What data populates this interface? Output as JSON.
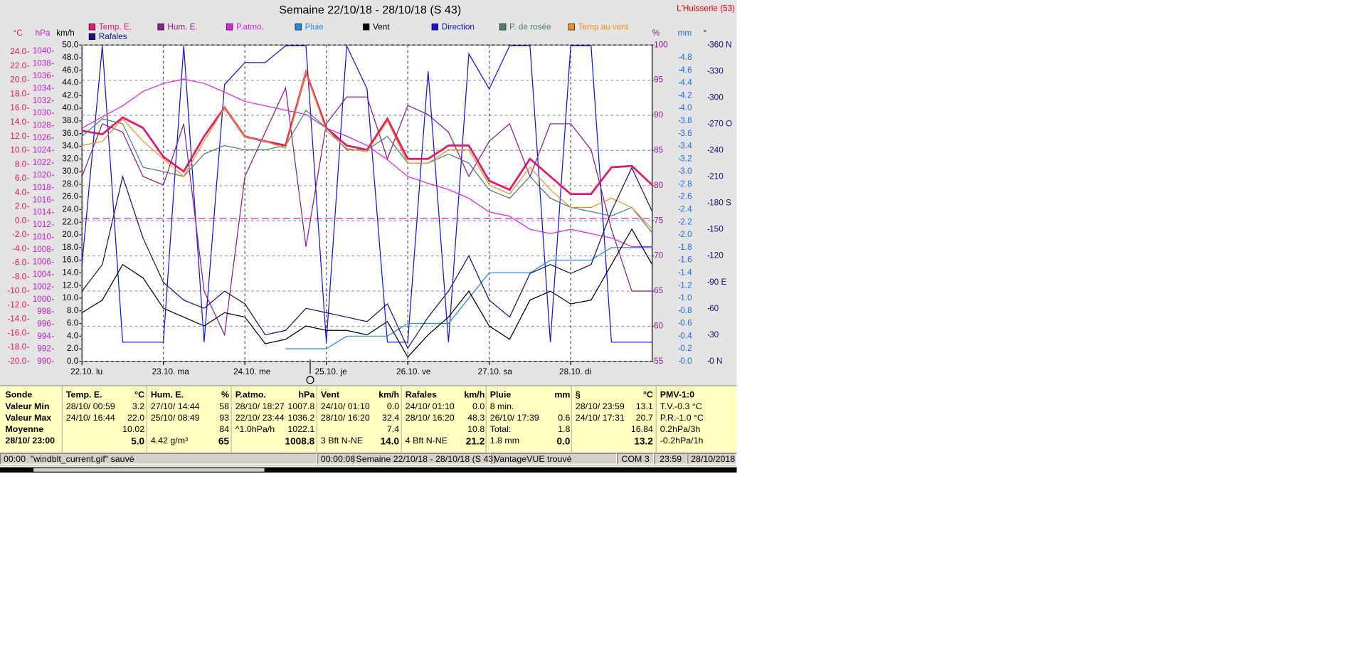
{
  "station": "L'Huisserie (53)",
  "chart_data": {
    "type": "line",
    "title": "Semaine 22/10/18 - 28/10/18 (S 43)",
    "grid": true,
    "x": [
      0,
      6,
      12,
      18,
      24,
      30,
      36,
      42,
      48,
      54,
      60,
      66,
      72,
      78,
      84,
      90,
      96,
      102,
      108,
      114,
      120,
      126,
      132,
      138,
      144,
      150,
      156,
      162,
      168
    ],
    "xlim": [
      0,
      168
    ],
    "xticks": [
      {
        "value": 0,
        "label": "22.10. lu"
      },
      {
        "value": 24,
        "label": "23.10. ma"
      },
      {
        "value": 48,
        "label": "24.10. me"
      },
      {
        "value": 72,
        "label": "25.10. je"
      },
      {
        "value": 96,
        "label": "26.10. ve"
      },
      {
        "value": 120,
        "label": "27.10. sa"
      },
      {
        "value": 144,
        "label": "28.10. di"
      }
    ],
    "axes": [
      {
        "unit": "°C",
        "color": "#e6176a",
        "side": "left",
        "lim": [
          -20,
          25
        ],
        "ticks": [
          {
            "value": -20,
            "label": "-20.0"
          },
          {
            "value": -18,
            "label": "-18.0"
          },
          {
            "value": -16,
            "label": "-16.0"
          },
          {
            "value": -14,
            "label": "-14.0"
          },
          {
            "value": -12,
            "label": "-12.0"
          },
          {
            "value": -10,
            "label": "-10.0"
          },
          {
            "value": -8,
            "label": "-8.0"
          },
          {
            "value": -6,
            "label": "-6.0"
          },
          {
            "value": -4,
            "label": "-4.0"
          },
          {
            "value": -2,
            "label": "-2.0"
          },
          {
            "value": 0,
            "label": "0.0"
          },
          {
            "value": 2,
            "label": "2.0"
          },
          {
            "value": 4,
            "label": "4.0"
          },
          {
            "value": 6,
            "label": "6.0"
          },
          {
            "value": 8,
            "label": "8.0"
          },
          {
            "value": 10,
            "label": "10.0"
          },
          {
            "value": 12,
            "label": "12.0"
          },
          {
            "value": 14,
            "label": "14.0"
          },
          {
            "value": 16,
            "label": "16.0"
          },
          {
            "value": 18,
            "label": "18.0"
          },
          {
            "value": 20,
            "label": "20.0"
          },
          {
            "value": 22,
            "label": "22.0"
          },
          {
            "value": 24,
            "label": "24.0"
          }
        ]
      },
      {
        "unit": "hPa",
        "color": "#c81ec8",
        "side": "left",
        "lim": [
          990,
          1041
        ],
        "ticks": [
          990,
          992,
          994,
          996,
          998,
          1000,
          1002,
          1004,
          1006,
          1008,
          1010,
          1012,
          1014,
          1016,
          1018,
          1020,
          1022,
          1024,
          1026,
          1028,
          1030,
          1032,
          1034,
          1036,
          1038,
          1040
        ]
      },
      {
        "unit": "km/h",
        "color": "#000000",
        "side": "left",
        "lim": [
          0,
          50
        ],
        "ticks": [
          {
            "value": 0,
            "label": "0.0"
          },
          {
            "value": 2,
            "label": "2.0"
          },
          {
            "value": 4,
            "label": "4.0"
          },
          {
            "value": 6,
            "label": "6.0"
          },
          {
            "value": 8,
            "label": "8.0"
          },
          {
            "value": 10,
            "label": "10.0"
          },
          {
            "value": 12,
            "label": "12.0"
          },
          {
            "value": 14,
            "label": "14.0"
          },
          {
            "value": 16,
            "label": "16.0"
          },
          {
            "value": 18,
            "label": "18.0"
          },
          {
            "value": 20,
            "label": "20.0"
          },
          {
            "value": 22,
            "label": "22.0"
          },
          {
            "value": 24,
            "label": "24.0"
          },
          {
            "value": 26,
            "label": "26.0"
          },
          {
            "value": 28,
            "label": "28.0"
          },
          {
            "value": 30,
            "label": "30.0"
          },
          {
            "value": 32,
            "label": "32.0"
          },
          {
            "value": 34,
            "label": "34.0"
          },
          {
            "value": 36,
            "label": "36.0"
          },
          {
            "value": 38,
            "label": "38.0"
          },
          {
            "value": 40,
            "label": "40.0"
          },
          {
            "value": 42,
            "label": "42.0"
          },
          {
            "value": 44,
            "label": "44.0"
          },
          {
            "value": 46,
            "label": "46.0"
          },
          {
            "value": 48,
            "label": "48.0"
          },
          {
            "value": 50,
            "label": "50.0"
          }
        ]
      },
      {
        "unit": "%",
        "color": "#8b1c8b",
        "side": "right",
        "lim": [
          55,
          100
        ],
        "ticks": [
          55,
          60,
          65,
          70,
          75,
          80,
          85,
          90,
          95,
          100
        ]
      },
      {
        "unit": "mm",
        "color": "#1e6ee6",
        "side": "right",
        "lim": [
          0,
          5
        ],
        "ticks": [
          {
            "value": 0,
            "label": "0.0"
          },
          0.2,
          0.4,
          0.6,
          0.8,
          {
            "value": 1,
            "label": "1.0"
          },
          1.2,
          1.4,
          1.6,
          1.8,
          {
            "value": 2,
            "label": "2.0"
          },
          2.2,
          2.4,
          2.6,
          2.8,
          {
            "value": 3,
            "label": "3.0"
          },
          3.2,
          3.4,
          3.6,
          3.8,
          {
            "value": 4,
            "label": "4.0"
          },
          4.2,
          4.4,
          4.6,
          4.8
        ]
      },
      {
        "unit": "°",
        "color": "#14147a",
        "side": "right",
        "lim": [
          0,
          360
        ],
        "ticks": [
          {
            "value": 0,
            "label": "0  N"
          },
          30,
          60,
          {
            "value": 90,
            "label": "90  E"
          },
          120,
          150,
          {
            "value": 180,
            "label": "180  S"
          },
          210,
          240,
          {
            "value": 270,
            "label": "270  O"
          },
          300,
          330,
          {
            "value": 360,
            "label": "360  N"
          }
        ]
      }
    ],
    "reference_hpa": 1013,
    "series": [
      {
        "name": "Temp. E.",
        "color": "#e6176a",
        "axis": 0,
        "values": [
          12.8,
          12.3,
          14.7,
          13.2,
          9.1,
          7.0,
          12.0,
          16.1,
          12.0,
          11.3,
          10.7,
          21.1,
          13.2,
          10.7,
          10.1,
          14.5,
          8.8,
          8.8,
          10.7,
          10.7,
          5.7,
          4.4,
          8.8,
          6.3,
          3.8,
          3.8,
          7.6,
          7.8,
          5.1
        ]
      },
      {
        "name": "Hum. E.",
        "color": "#8b1c8b",
        "axis": 3,
        "values": [
          81.3,
          88.8,
          87.6,
          81.3,
          80.1,
          88.8,
          65.0,
          58.8,
          81.3,
          87.6,
          93.9,
          71.3,
          88.8,
          92.6,
          92.6,
          83.8,
          91.4,
          90.1,
          87.6,
          81.3,
          86.3,
          88.8,
          81.3,
          88.8,
          88.8,
          85.1,
          73.8,
          65.0,
          65.0
        ]
      },
      {
        "name": "P.atmo.",
        "color": "#e61ee6",
        "axis": 1,
        "values": [
          1027.6,
          1029.4,
          1031.2,
          1033.5,
          1034.8,
          1035.5,
          1034.8,
          1033.4,
          1031.9,
          1031.2,
          1030.5,
          1029.8,
          1027.6,
          1026.3,
          1024.8,
          1022.5,
          1019.8,
          1018.7,
          1017.7,
          1016.3,
          1014.1,
          1013.4,
          1011.3,
          1010.6,
          1011.3,
          1010.6,
          1009.9,
          1008.5,
          1008.5
        ]
      },
      {
        "name": "Pluie",
        "color": "#1e8ce6",
        "axis": 4,
        "values": [
          null,
          null,
          null,
          null,
          null,
          null,
          null,
          null,
          null,
          null,
          0.2,
          0.2,
          0.2,
          0.4,
          0.4,
          0.4,
          0.6,
          0.6,
          0.6,
          1.0,
          1.4,
          1.4,
          1.4,
          1.6,
          1.6,
          1.6,
          1.8,
          1.8,
          1.8
        ]
      },
      {
        "name": "Vent",
        "color": "#000000",
        "axis": 2,
        "values": [
          7.7,
          9.7,
          15.3,
          13.2,
          8.4,
          7.0,
          5.6,
          7.7,
          7.0,
          2.8,
          3.5,
          5.6,
          4.9,
          4.9,
          4.2,
          6.3,
          0.7,
          4.2,
          7.0,
          11.1,
          5.6,
          3.5,
          9.7,
          11.1,
          9.1,
          9.7,
          15.3,
          20.9,
          15.3
        ]
      },
      {
        "name": "Direction",
        "color": "#1414e6",
        "axis": 5,
        "values": [
          110,
          359,
          22,
          22,
          22,
          359,
          22,
          315,
          340,
          340,
          359,
          359,
          22,
          359,
          310,
          22,
          22,
          330,
          22,
          350,
          310,
          359,
          359,
          22,
          359,
          359,
          22,
          22,
          22
        ]
      },
      {
        "name": "P. de rosée",
        "color": "#4a8078",
        "axis": 0,
        "values": [
          12.0,
          14.5,
          13.8,
          7.6,
          7.0,
          6.3,
          9.5,
          10.7,
          10.1,
          10.1,
          10.7,
          15.7,
          13.2,
          10.1,
          10.1,
          12.0,
          8.2,
          8.2,
          9.5,
          8.2,
          4.4,
          3.2,
          6.3,
          3.2,
          1.9,
          1.3,
          0.7,
          1.9,
          -1.7
        ]
      },
      {
        "name": "Temp au vent",
        "color": "#f0901a",
        "axis": 0,
        "values": [
          10.7,
          11.3,
          14.5,
          11.3,
          8.8,
          6.3,
          11.3,
          16.1,
          12.0,
          11.3,
          10.3,
          21.1,
          12.8,
          10.3,
          9.8,
          14.2,
          8.2,
          8.2,
          10.1,
          10.1,
          5.1,
          3.8,
          7.6,
          4.4,
          1.9,
          1.9,
          3.2,
          1.9,
          -1.2
        ]
      },
      {
        "name": "Rafales",
        "color": "#14147a",
        "axis": 2,
        "values": [
          11.1,
          15.3,
          29.2,
          19.5,
          12.5,
          9.7,
          8.4,
          11.1,
          9.1,
          4.2,
          4.9,
          8.4,
          7.7,
          7.0,
          6.3,
          9.1,
          2.1,
          7.0,
          11.1,
          16.7,
          9.7,
          7.0,
          13.9,
          15.3,
          13.9,
          15.3,
          23.7,
          30.6,
          23.7
        ]
      }
    ]
  },
  "table": {
    "row_labels": [
      "Sonde",
      "Valeur Min",
      "Valeur Max",
      "Moyenne",
      "28/10/ 23:00"
    ],
    "columns": [
      {
        "title": "Temp. E.",
        "unit": "°C",
        "rows": [
          [
            "28/10/ 00:59",
            "3.2"
          ],
          [
            "24/10/ 16:44",
            "22.0"
          ],
          [
            null,
            "10.02"
          ],
          [
            null,
            "5.0"
          ]
        ]
      },
      {
        "title": "Hum. E.",
        "unit": "%",
        "rows": [
          [
            "27/10/ 14:44",
            "58"
          ],
          [
            "25/10/ 08:49",
            "93"
          ],
          [
            null,
            "84"
          ],
          [
            "4.42 g/m³",
            "65"
          ]
        ]
      },
      {
        "title": "P.atmo.",
        "unit": "hPa",
        "rows": [
          [
            "28/10/ 18:27",
            "1007.8"
          ],
          [
            "22/10/ 23:44",
            "1036.2"
          ],
          [
            "^1.0hPa/h",
            "1022.1"
          ],
          [
            null,
            "1008.8"
          ]
        ]
      },
      {
        "title": "Vent",
        "unit": "km/h",
        "rows": [
          [
            "24/10/ 01:10",
            "0.0"
          ],
          [
            "28/10/ 16:20",
            "32.4"
          ],
          [
            null,
            "7.4"
          ],
          [
            "3 Bft N-NE",
            "14.0"
          ]
        ]
      },
      {
        "title": "Rafales",
        "unit": "km/h",
        "rows": [
          [
            "24/10/ 01:10",
            "0.0"
          ],
          [
            "28/10/ 16:20",
            "48.3"
          ],
          [
            null,
            "10.8"
          ],
          [
            "4 Bft N-NE",
            "21.2"
          ]
        ]
      },
      {
        "title": "Pluie",
        "unit": "mm",
        "rows": [
          [
            "8 min.",
            null
          ],
          [
            "26/10/ 17:39",
            "0.6"
          ],
          [
            "Total:",
            "1.8"
          ],
          [
            "1.8 mm",
            "0.0"
          ]
        ]
      },
      {
        "title": "§",
        "unit": "°C",
        "rows": [
          [
            "28/10/ 23:59",
            "13.1"
          ],
          [
            "24/10/ 17:31",
            "20.7"
          ],
          [
            null,
            "16.84"
          ],
          [
            null,
            "13.2"
          ]
        ]
      },
      {
        "title": "PMV-1:0",
        "unit": null,
        "rows": [
          [
            "T.V.-0.3 °C",
            null
          ],
          [
            "P.R.-1.0 °C",
            null
          ],
          [
            "0.2hPa/3h",
            null
          ],
          [
            "-0.2hPa/1h",
            null
          ]
        ]
      }
    ]
  },
  "status_bar": [
    "00:00  \"windblt_current.gif\" sauvé",
    "00:00:08",
    "Semaine 22/10/18 - 28/10/18 (S 43)",
    "VantageVUE trouvé",
    "COM 3",
    "23:59",
    "28/10/2018"
  ]
}
